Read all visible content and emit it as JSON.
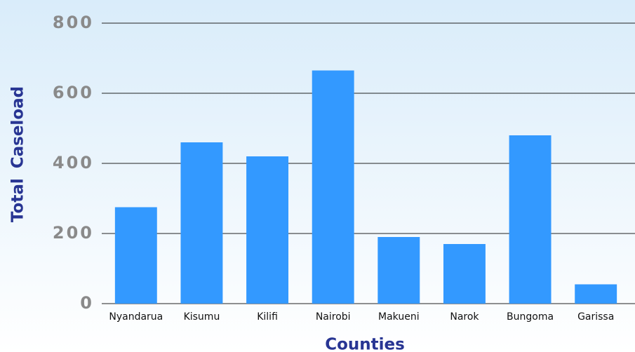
{
  "chart_data": {
    "type": "bar",
    "x_label": "Counties",
    "y_label": "Total Caseload",
    "categories": [
      "Nyandarua",
      "Kisumu",
      "Kilifi",
      "Nairobi",
      "Makueni",
      "Narok",
      "Bungoma",
      "Garissa"
    ],
    "values": [
      275,
      460,
      420,
      665,
      190,
      170,
      480,
      55
    ],
    "color": "#3399ff",
    "ylim": [
      0,
      800
    ],
    "yticks": [
      0,
      200,
      400,
      600,
      800
    ],
    "grid": true
  }
}
